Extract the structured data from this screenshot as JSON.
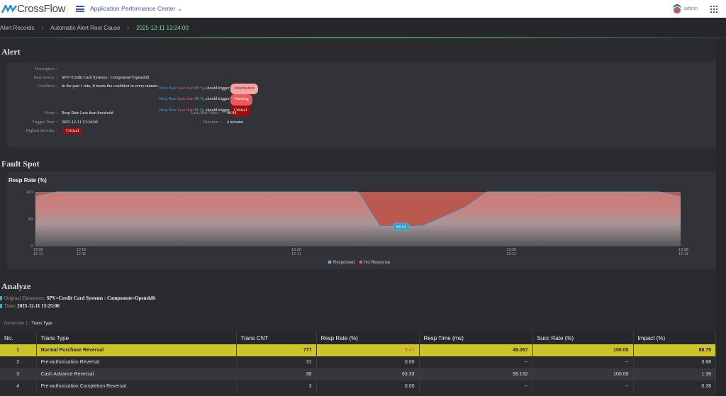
{
  "header": {
    "brand": "CrossFlow",
    "app": "Application Performance Center",
    "user": "admin"
  },
  "breadcrumb": [
    "Alert Records",
    "Automatic Alert Root Cause",
    "2025-12-11 13:24:00"
  ],
  "alert": {
    "title": "Alert",
    "description_label": "Description :",
    "description": "",
    "data_source_label": "Data Source :",
    "data_source": "SPV=Credit Card Systems : Component=Openshift",
    "condition_label": "Condition :",
    "condition_intro": "In the past 1 min, if meets the condition in every minute:",
    "conditions": [
      {
        "metric": "Resp Rate",
        "op": "Less than",
        "value": "95 %",
        "suffix": ", should trigger",
        "severity": "Information"
      },
      {
        "metric": "Resp Rate",
        "op": "Less than",
        "value": "90 %",
        "suffix": ", should trigger",
        "severity": "Warning"
      },
      {
        "metric": "Resp Rate",
        "op": "Less than",
        "value": "85 %",
        "suffix": ", should trigger",
        "severity": "Critical"
      }
    ],
    "event_label": "Event :",
    "event": "Resp Rate Less than threshold",
    "last_alert_label": "Last Alert Value :",
    "last_alert": "90.84",
    "trigger_label": "Trigger Time :",
    "trigger": "2025-12-11 13:24:00",
    "duration_label": "Duration :",
    "duration": "4 minutes",
    "severity_label": "Highest Severity :",
    "severity": "Critical"
  },
  "fault": {
    "title": "Fault Spot"
  },
  "chart_data": {
    "type": "area",
    "title": "Resp Rate (%)",
    "x": [
      "13:08",
      "13:09",
      "13:23",
      "13:24",
      "13:25",
      "13:26",
      "13:27",
      "13:28",
      "13:29",
      "13:37",
      "13:38"
    ],
    "values": [
      98.2,
      100,
      100,
      66,
      64.14,
      66,
      90.8,
      94.4,
      100,
      100,
      98.2
    ],
    "x_ticks": [
      {
        "t": "13:08",
        "d": "12-11"
      },
      {
        "t": "13:10",
        "d": "12-11"
      },
      {
        "t": "13:20",
        "d": "12-11"
      },
      {
        "t": "13:30",
        "d": "12-11"
      },
      {
        "t": "13:38",
        "d": "12-11"
      }
    ],
    "y_ticks": [
      "0",
      "90",
      "100"
    ],
    "ylim": [
      0,
      100
    ],
    "data_label": "64.14",
    "legend": [
      {
        "name": "Responsed",
        "color": "#4fb3d9"
      },
      {
        "name": "No Response",
        "color": "#e05555"
      }
    ],
    "legend_position": "bottom"
  },
  "analyze": {
    "title": "Analyze",
    "orig_label": "Original Dimension:",
    "orig": "SPV=Credit Card Systems : Component=Openshift",
    "time_label": "Time:",
    "time": "2025-12-11 13:25:00",
    "dim_label": "Dimension 1 :",
    "dim": "Trans Type"
  },
  "table": {
    "headers": [
      "No.",
      "Trans Type",
      "Trans CNT",
      "Resp Rate (%)",
      "Resp Time (ms)",
      "Succ Rate (%)",
      "Impact (%)"
    ],
    "rows": [
      [
        "1",
        "Normal Purchase Reversal",
        "777",
        "3.47",
        "49.067",
        "100.00",
        "88.75"
      ],
      [
        "2",
        "Pre-authorization Reversal",
        "31",
        "0.00",
        "--",
        "--",
        "3.88"
      ],
      [
        "3",
        "Cash Advance Reversal",
        "30",
        "63.33",
        "58.132",
        "100.00",
        "1.38"
      ],
      [
        "4",
        "Pre-authorization Completion Reversal",
        "3",
        "0.00",
        "--",
        "--",
        "0.38"
      ]
    ]
  }
}
